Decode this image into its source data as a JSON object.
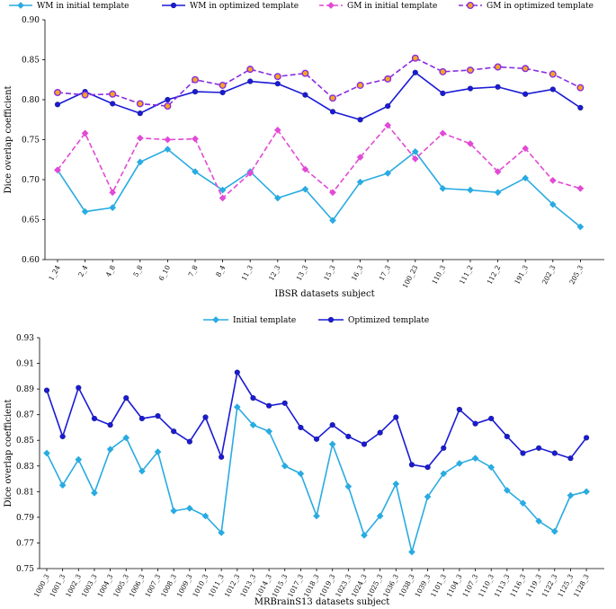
{
  "chart_data": [
    {
      "type": "line",
      "xlabel": "IBSR datasets subject",
      "ylabel": "Dice overlap coefficient",
      "ylim": [
        0.6,
        0.9
      ],
      "yticks": [
        "0.60",
        "0.65",
        "0.70",
        "0.75",
        "0.80",
        "0.85",
        "0.90"
      ],
      "categories": [
        "1_24",
        "2_4",
        "4_8",
        "5_8",
        "6_10",
        "7_8",
        "8_4",
        "11_3",
        "12_3",
        "13_3",
        "15_3",
        "16_3",
        "17_3",
        "100_23",
        "110_3",
        "111_2",
        "112_2",
        "191_3",
        "202_3",
        "205_3"
      ],
      "series": [
        {
          "name": "WM in initial template",
          "color": "#29abe2",
          "dash": "solid",
          "marker": "diamond",
          "values": [
            0.712,
            0.66,
            0.665,
            0.722,
            0.738,
            0.71,
            0.687,
            0.71,
            0.677,
            0.688,
            0.649,
            0.697,
            0.708,
            0.735,
            0.689,
            0.687,
            0.684,
            0.702,
            0.669,
            0.641
          ]
        },
        {
          "name": "WM in optimized template",
          "color": "#1a1ad6",
          "dash": "solid",
          "marker": "dot",
          "values": [
            0.794,
            0.81,
            0.795,
            0.783,
            0.8,
            0.81,
            0.809,
            0.823,
            0.82,
            0.806,
            0.785,
            0.775,
            0.792,
            0.834,
            0.808,
            0.814,
            0.816,
            0.807,
            0.813,
            0.79
          ]
        },
        {
          "name": "GM in initial template",
          "color": "#e24ad6",
          "dash": "dashed",
          "marker": "diamond",
          "values": [
            0.712,
            0.758,
            0.684,
            0.752,
            0.75,
            0.751,
            0.677,
            0.708,
            0.762,
            0.713,
            0.684,
            0.728,
            0.768,
            0.726,
            0.758,
            0.745,
            0.71,
            0.739,
            0.699,
            0.689
          ]
        },
        {
          "name": "GM in optimized template",
          "color": "#8a2be2",
          "dash": "dashed",
          "marker": "dot-orange",
          "values": [
            0.809,
            0.806,
            0.807,
            0.795,
            0.792,
            0.825,
            0.818,
            0.838,
            0.829,
            0.833,
            0.802,
            0.818,
            0.826,
            0.852,
            0.835,
            0.837,
            0.841,
            0.839,
            0.832,
            0.815
          ]
        }
      ]
    },
    {
      "type": "line",
      "xlabel": "MRBrainS13  datasets subject",
      "ylabel": "Dice overlap coefficient",
      "ylim": [
        0.75,
        0.93
      ],
      "yticks": [
        "0.75",
        "0.77",
        "0.79",
        "0.81",
        "0.83",
        "0.85",
        "0.87",
        "0.89",
        "0.91",
        "0.93"
      ],
      "categories": [
        "1000_3",
        "1001_3",
        "1002_3",
        "1003_3",
        "1004_3",
        "1005_3",
        "1006_3",
        "1007_3",
        "1008_3",
        "1009_3",
        "1010_3",
        "1011_3",
        "1012_3",
        "1013_3",
        "1014_3",
        "1015_3",
        "1017_3",
        "1018_3",
        "1019_3",
        "1023_3",
        "1024_3",
        "1025_3",
        "1036_3",
        "1038_3",
        "1039_3",
        "1101_3",
        "1104_3",
        "1107_3",
        "1110_3",
        "1113_3",
        "1116_3",
        "1119_3",
        "1122_3",
        "1125_3",
        "1128_3"
      ],
      "series": [
        {
          "name": "Initial template",
          "color": "#29abe2",
          "dash": "solid",
          "marker": "diamond",
          "values": [
            0.84,
            0.815,
            0.835,
            0.809,
            0.843,
            0.852,
            0.826,
            0.841,
            0.795,
            0.797,
            0.791,
            0.778,
            0.876,
            0.862,
            0.857,
            0.83,
            0.824,
            0.791,
            0.847,
            0.814,
            0.776,
            0.791,
            0.816,
            0.763,
            0.806,
            0.824,
            0.832,
            0.836,
            0.829,
            0.811,
            0.801,
            0.787,
            0.779,
            0.807,
            0.81
          ]
        },
        {
          "name": "Optimized template",
          "color": "#1a1ad6",
          "dash": "solid",
          "marker": "dot",
          "values": [
            0.889,
            0.853,
            0.891,
            0.867,
            0.862,
            0.883,
            0.867,
            0.869,
            0.857,
            0.849,
            0.868,
            0.837,
            0.903,
            0.883,
            0.877,
            0.879,
            0.86,
            0.851,
            0.862,
            0.853,
            0.847,
            0.856,
            0.868,
            0.831,
            0.829,
            0.844,
            0.874,
            0.863,
            0.867,
            0.853,
            0.84,
            0.844,
            0.84,
            0.836,
            0.852
          ]
        }
      ]
    }
  ]
}
